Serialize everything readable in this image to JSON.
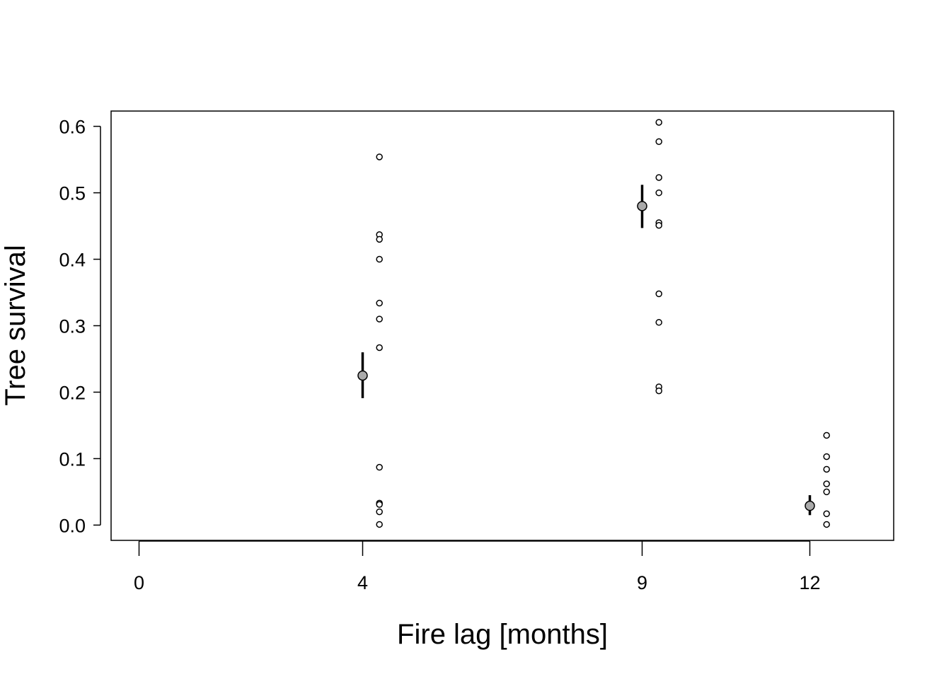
{
  "chart_data": {
    "type": "scatter",
    "title": "",
    "xlabel": "Fire lag [months]",
    "ylabel": "Tree survival",
    "xlim": [
      -0.5,
      13.5
    ],
    "ylim": [
      -0.023,
      0.623
    ],
    "x_ticks": [
      0,
      4,
      9,
      12
    ],
    "y_ticks": [
      0.0,
      0.1,
      0.2,
      0.3,
      0.4,
      0.5,
      0.6
    ],
    "y_tick_labels": [
      "0.0",
      "0.1",
      "0.2",
      "0.3",
      "0.4",
      "0.5",
      "0.6"
    ],
    "grid": false,
    "legend": "none",
    "raw_offset": 0.3,
    "groups": [
      {
        "x": 4,
        "mean": 0.225,
        "ci": [
          0.191,
          0.26
        ],
        "raw": [
          0.554,
          0.437,
          0.43,
          0.4,
          0.334,
          0.31,
          0.267,
          0.087,
          0.033,
          0.031,
          0.02,
          0.001
        ]
      },
      {
        "x": 9,
        "mean": 0.48,
        "ci": [
          0.447,
          0.512
        ],
        "raw": [
          0.606,
          0.577,
          0.523,
          0.5,
          0.455,
          0.451,
          0.348,
          0.305,
          0.208,
          0.202
        ]
      },
      {
        "x": 12,
        "mean": 0.029,
        "ci": [
          0.015,
          0.045
        ],
        "raw": [
          0.135,
          0.103,
          0.084,
          0.062,
          0.05,
          0.017,
          0.001
        ]
      }
    ],
    "colors": {
      "mean_fill": "#aaaaaa",
      "stroke": "#000000",
      "raw_fill": "#ffffff"
    }
  }
}
